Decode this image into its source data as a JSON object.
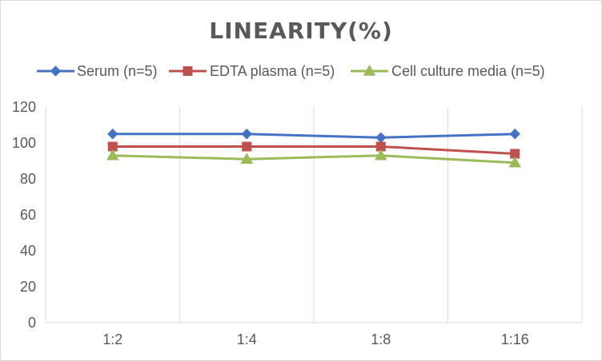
{
  "chart_data": {
    "type": "line",
    "title": "LINEARITY(%)",
    "xlabel": "",
    "ylabel": "",
    "categories": [
      "1:2",
      "1:4",
      "1:8",
      "1:16"
    ],
    "ylim": [
      0,
      120
    ],
    "yticks": [
      0,
      20,
      40,
      60,
      80,
      100,
      120
    ],
    "grid": "vertical",
    "legend_position": "top",
    "series": [
      {
        "name": "Serum (n=5)",
        "values": [
          105,
          105,
          103,
          105
        ],
        "color": "#4472c4",
        "marker": "diamond"
      },
      {
        "name": "EDTA plasma (n=5)",
        "values": [
          98,
          98,
          98,
          94
        ],
        "color": "#c0504d",
        "marker": "square"
      },
      {
        "name": "Cell culture media (n=5)",
        "values": [
          93,
          91,
          93,
          89
        ],
        "color": "#9bbb59",
        "marker": "triangle"
      }
    ]
  }
}
